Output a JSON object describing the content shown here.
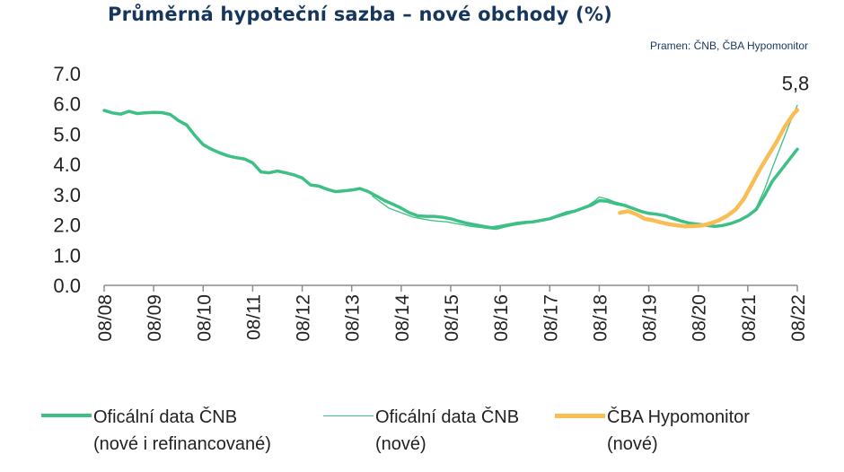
{
  "chart_data": {
    "type": "line",
    "title": "Průměrná hypoteční sazba – nové obchody (%)",
    "source": "Pramen: ČNB, ČBA Hypomonitor",
    "ylim": [
      0,
      7
    ],
    "yticks": [
      "0.0",
      "1.0",
      "2.0",
      "3.0",
      "4.0",
      "5.0",
      "6.0",
      "7.0"
    ],
    "ytick_values": [
      0,
      1,
      2,
      3,
      4,
      5,
      6,
      7
    ],
    "xticks": [
      "08/08",
      "08/09",
      "08/10",
      "08/11",
      "08/12",
      "08/13",
      "08/14",
      "08/15",
      "08/16",
      "08/17",
      "08/18",
      "08/19",
      "08/20",
      "08/21",
      "08/22"
    ],
    "x_start": "08/08",
    "x_end": "08/22",
    "grid": false,
    "legend_position": "bottom",
    "annotation": {
      "text": "5,8",
      "x": "08/22",
      "y": 5.8
    },
    "series": [
      {
        "name": "Oficální data ČNB (nové i refinancované)",
        "label_lines": [
          "Oficální data ČNB",
          "(nové i refinancované)"
        ],
        "color": "#3dbf85",
        "style": "thick",
        "points": [
          [
            "08/08",
            5.78
          ],
          [
            "10/08",
            5.7
          ],
          [
            "12/08",
            5.66
          ],
          [
            "02/09",
            5.75
          ],
          [
            "04/09",
            5.68
          ],
          [
            "06/09",
            5.7
          ],
          [
            "08/09",
            5.72
          ],
          [
            "10/09",
            5.71
          ],
          [
            "12/09",
            5.65
          ],
          [
            "02/10",
            5.45
          ],
          [
            "04/10",
            5.3
          ],
          [
            "06/10",
            4.95
          ],
          [
            "08/10",
            4.65
          ],
          [
            "10/10",
            4.5
          ],
          [
            "12/10",
            4.38
          ],
          [
            "02/11",
            4.28
          ],
          [
            "04/11",
            4.22
          ],
          [
            "06/11",
            4.18
          ],
          [
            "08/11",
            4.05
          ],
          [
            "10/11",
            3.75
          ],
          [
            "12/11",
            3.72
          ],
          [
            "02/12",
            3.78
          ],
          [
            "04/12",
            3.72
          ],
          [
            "06/12",
            3.65
          ],
          [
            "08/12",
            3.55
          ],
          [
            "10/12",
            3.32
          ],
          [
            "12/12",
            3.28
          ],
          [
            "02/13",
            3.18
          ],
          [
            "04/13",
            3.1
          ],
          [
            "06/13",
            3.12
          ],
          [
            "08/13",
            3.15
          ],
          [
            "10/13",
            3.2
          ],
          [
            "12/13",
            3.1
          ],
          [
            "02/14",
            2.95
          ],
          [
            "04/14",
            2.8
          ],
          [
            "06/14",
            2.68
          ],
          [
            "08/14",
            2.55
          ],
          [
            "10/14",
            2.4
          ],
          [
            "12/14",
            2.3
          ],
          [
            "02/15",
            2.28
          ],
          [
            "04/15",
            2.28
          ],
          [
            "06/15",
            2.25
          ],
          [
            "08/15",
            2.2
          ],
          [
            "10/15",
            2.12
          ],
          [
            "12/15",
            2.05
          ],
          [
            "02/16",
            2.0
          ],
          [
            "04/16",
            1.95
          ],
          [
            "06/16",
            1.9
          ],
          [
            "08/16",
            1.95
          ],
          [
            "10/16",
            2.0
          ],
          [
            "12/16",
            2.05
          ],
          [
            "02/17",
            2.08
          ],
          [
            "04/17",
            2.1
          ],
          [
            "06/17",
            2.15
          ],
          [
            "08/17",
            2.2
          ],
          [
            "10/17",
            2.3
          ],
          [
            "12/17",
            2.4
          ],
          [
            "02/18",
            2.45
          ],
          [
            "04/18",
            2.55
          ],
          [
            "06/18",
            2.65
          ],
          [
            "08/18",
            2.8
          ],
          [
            "10/18",
            2.78
          ],
          [
            "12/18",
            2.7
          ],
          [
            "02/19",
            2.65
          ],
          [
            "04/19",
            2.55
          ],
          [
            "06/19",
            2.45
          ],
          [
            "08/19",
            2.38
          ],
          [
            "10/19",
            2.35
          ],
          [
            "12/19",
            2.3
          ],
          [
            "02/20",
            2.2
          ],
          [
            "04/20",
            2.12
          ],
          [
            "06/20",
            2.05
          ],
          [
            "08/20",
            2.02
          ],
          [
            "10/20",
            1.98
          ],
          [
            "12/20",
            1.95
          ],
          [
            "02/21",
            1.98
          ],
          [
            "04/21",
            2.05
          ],
          [
            "06/21",
            2.15
          ],
          [
            "08/21",
            2.3
          ],
          [
            "10/21",
            2.5
          ],
          [
            "12/21",
            2.95
          ],
          [
            "02/22",
            3.45
          ],
          [
            "04/22",
            3.8
          ],
          [
            "06/22",
            4.15
          ],
          [
            "08/22",
            4.5
          ]
        ]
      },
      {
        "name": "Oficální data ČNB (nové)",
        "label_lines": [
          "Oficální data ČNB",
          "(nové)"
        ],
        "color": "#3dbf85",
        "style": "thin",
        "points": [
          [
            "01/14",
            2.95
          ],
          [
            "03/14",
            2.75
          ],
          [
            "05/14",
            2.55
          ],
          [
            "07/14",
            2.45
          ],
          [
            "09/14",
            2.35
          ],
          [
            "11/14",
            2.25
          ],
          [
            "01/15",
            2.2
          ],
          [
            "03/15",
            2.15
          ],
          [
            "05/15",
            2.12
          ],
          [
            "07/15",
            2.1
          ],
          [
            "09/15",
            2.05
          ],
          [
            "11/15",
            2.0
          ],
          [
            "01/16",
            1.95
          ],
          [
            "03/16",
            1.92
          ],
          [
            "05/16",
            1.88
          ],
          [
            "07/16",
            1.85
          ],
          [
            "09/16",
            1.92
          ],
          [
            "11/16",
            1.98
          ],
          [
            "01/17",
            2.02
          ],
          [
            "03/17",
            2.06
          ],
          [
            "05/17",
            2.1
          ],
          [
            "07/17",
            2.15
          ],
          [
            "09/17",
            2.22
          ],
          [
            "11/17",
            2.3
          ],
          [
            "01/18",
            2.38
          ],
          [
            "03/18",
            2.48
          ],
          [
            "05/18",
            2.62
          ],
          [
            "07/18",
            2.8
          ],
          [
            "08/18",
            2.92
          ],
          [
            "10/18",
            2.85
          ],
          [
            "12/18",
            2.75
          ],
          [
            "02/19",
            2.68
          ],
          [
            "04/19",
            2.58
          ],
          [
            "06/19",
            2.48
          ],
          [
            "08/19",
            2.4
          ],
          [
            "10/19",
            2.35
          ],
          [
            "12/19",
            2.3
          ],
          [
            "02/20",
            2.25
          ],
          [
            "04/20",
            2.15
          ],
          [
            "06/20",
            2.08
          ],
          [
            "08/20",
            2.02
          ],
          [
            "10/20",
            1.98
          ],
          [
            "12/20",
            1.95
          ],
          [
            "02/21",
            1.98
          ],
          [
            "04/21",
            2.05
          ],
          [
            "06/21",
            2.15
          ],
          [
            "08/21",
            2.3
          ],
          [
            "10/21",
            2.55
          ],
          [
            "12/21",
            3.15
          ],
          [
            "02/22",
            3.9
          ],
          [
            "04/22",
            4.6
          ],
          [
            "06/22",
            5.3
          ],
          [
            "08/22",
            5.95
          ]
        ]
      },
      {
        "name": "ČBA Hypomonitor (nové)",
        "label_lines": [
          "ČBA Hypomonitor",
          "(nové)"
        ],
        "color": "#f9bd56",
        "style": "thick",
        "points": [
          [
            "01/19",
            2.4
          ],
          [
            "03/19",
            2.45
          ],
          [
            "05/19",
            2.35
          ],
          [
            "07/19",
            2.2
          ],
          [
            "09/19",
            2.15
          ],
          [
            "11/19",
            2.08
          ],
          [
            "01/20",
            2.02
          ],
          [
            "03/20",
            1.98
          ],
          [
            "05/20",
            1.95
          ],
          [
            "07/20",
            1.96
          ],
          [
            "09/20",
            1.98
          ],
          [
            "11/20",
            2.05
          ],
          [
            "01/21",
            2.15
          ],
          [
            "03/21",
            2.3
          ],
          [
            "05/21",
            2.5
          ],
          [
            "07/21",
            2.85
          ],
          [
            "09/21",
            3.35
          ],
          [
            "11/21",
            3.85
          ],
          [
            "01/22",
            4.3
          ],
          [
            "03/22",
            4.75
          ],
          [
            "05/22",
            5.25
          ],
          [
            "07/22",
            5.65
          ],
          [
            "08/22",
            5.8
          ]
        ]
      }
    ]
  }
}
